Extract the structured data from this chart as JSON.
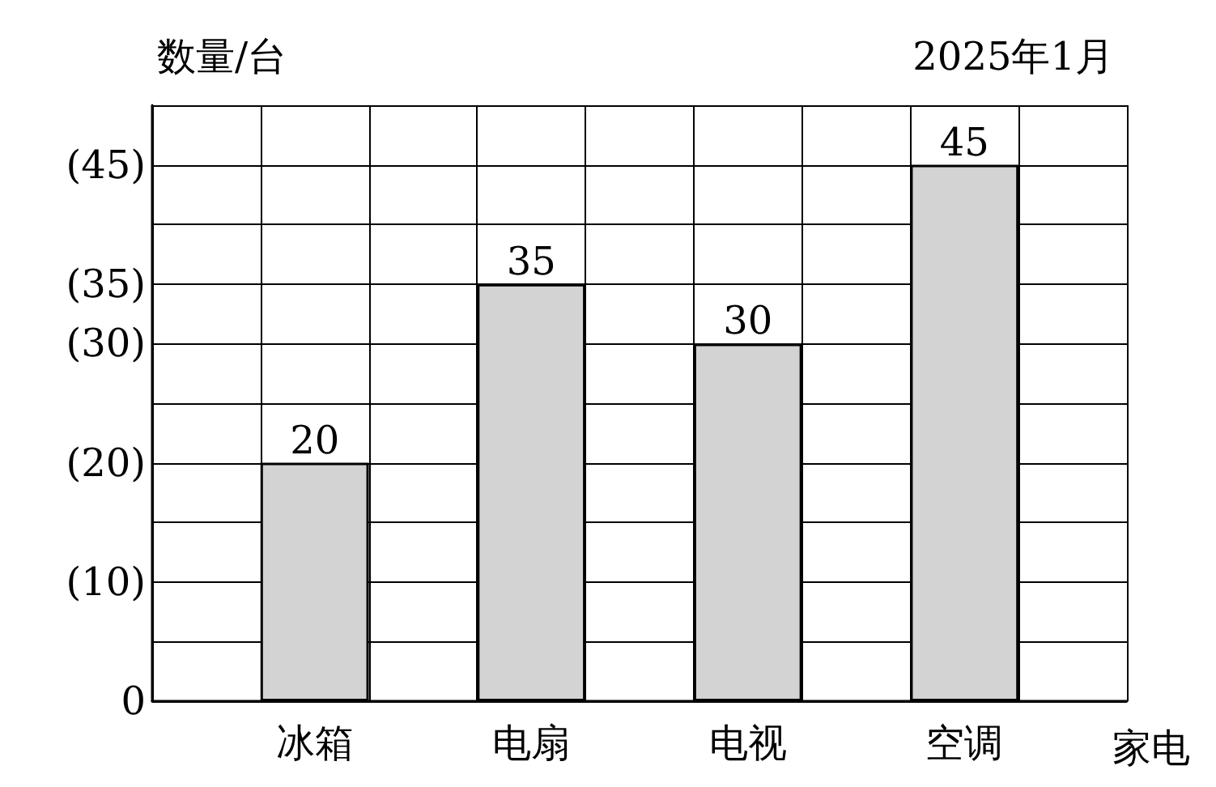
{
  "chart_data": {
    "type": "bar",
    "title": "数量/台",
    "subtitle": "2025年1月",
    "xlabel": "家电",
    "categories": [
      null,
      "冰箱",
      null,
      "电扇",
      null,
      "电视",
      null,
      "空调",
      null
    ],
    "values": [
      null,
      20,
      null,
      35,
      null,
      30,
      null,
      45,
      null
    ],
    "color": "#d3d3d3",
    "ylim": [
      0,
      50
    ],
    "yticks": [
      0,
      {
        "value": 5,
        "label": null
      },
      {
        "value": 10,
        "label": "(10)"
      },
      {
        "value": 15,
        "label": null
      },
      {
        "value": 20,
        "label": "(20)"
      },
      {
        "value": 25,
        "label": null
      },
      {
        "value": 30,
        "label": "(30)"
      },
      {
        "value": 35,
        "label": "(35)"
      },
      {
        "value": 40,
        "label": null
      },
      {
        "value": 45,
        "label": "(45)"
      },
      {
        "value": 50,
        "label": null
      }
    ],
    "grid": true,
    "data_labels": true
  }
}
